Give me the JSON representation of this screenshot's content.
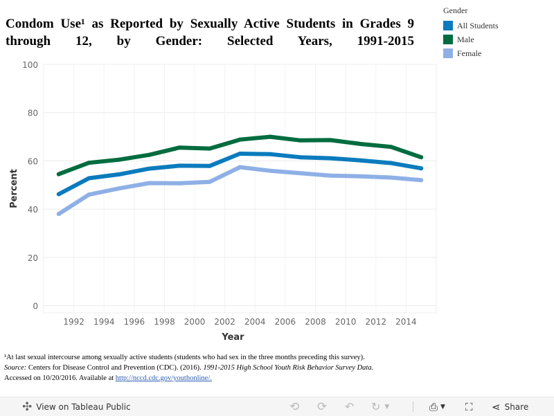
{
  "title": "Condom Use¹ as Reported by Sexually Active Students in Grades 9 through 12, by Gender: Selected Years, 1991-2015",
  "legend": {
    "title": "Gender",
    "items": [
      {
        "label": "All Students",
        "color": "#0b7bbd"
      },
      {
        "label": "Male",
        "color": "#006c3f"
      },
      {
        "label": "Female",
        "color": "#8fb0e6"
      }
    ]
  },
  "chart_data": {
    "type": "line",
    "xlabel": "Year",
    "ylabel": "Percent",
    "xlim": [
      1990,
      2016
    ],
    "ylim": [
      -3,
      100
    ],
    "x_ticks": [
      1992,
      1994,
      1996,
      1998,
      2000,
      2002,
      2004,
      2006,
      2008,
      2010,
      2012,
      2014
    ],
    "y_ticks": [
      0,
      20,
      40,
      60,
      80,
      100
    ],
    "grid": true,
    "legend_position": "top-right",
    "x": [
      1991,
      1993,
      1995,
      1997,
      1999,
      2001,
      2003,
      2005,
      2007,
      2009,
      2011,
      2013,
      2015
    ],
    "series": [
      {
        "name": "All Students",
        "color": "#0b7bbd",
        "values": [
          46.2,
          52.8,
          54.4,
          56.8,
          58.0,
          57.9,
          63.0,
          62.8,
          61.5,
          61.1,
          60.2,
          59.1,
          56.9
        ]
      },
      {
        "name": "Male",
        "color": "#006c3f",
        "values": [
          54.5,
          59.2,
          60.5,
          62.5,
          65.5,
          65.1,
          68.8,
          70.0,
          68.5,
          68.6,
          67.0,
          65.8,
          61.5
        ]
      },
      {
        "name": "Female",
        "color": "#8fb0e6",
        "values": [
          38.0,
          46.0,
          48.6,
          50.8,
          50.7,
          51.3,
          57.4,
          55.9,
          54.9,
          53.9,
          53.6,
          53.1,
          52.0
        ]
      }
    ]
  },
  "footnote": {
    "line1": "¹At last sexual intercourse among sexually active students (students who had sex in the three months preceding this survey).",
    "source_label": "Source:",
    "source_text": " Centers for Disease Control and Prevention (CDC). (2016). ",
    "source_title": "1991-2015 High School Youth Risk Behavior Survey Data.",
    "accessed": "Accessed on 10/20/2016. Available at ",
    "link": "http://nccd.cdc.gov/youthonline/."
  },
  "toolbar": {
    "view_label": "View on Tableau Public",
    "share_label": "Share",
    "icons": {
      "tableau": "tableau-logo-icon",
      "undo": "undo-icon",
      "redo": "redo-icon",
      "revert": "revert-icon",
      "refresh": "refresh-icon",
      "pause": "pause-icon",
      "download": "download-icon",
      "fullscreen": "fullscreen-icon",
      "share": "share-icon"
    }
  }
}
